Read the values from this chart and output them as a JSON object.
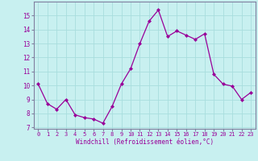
{
  "x": [
    0,
    1,
    2,
    3,
    4,
    5,
    6,
    7,
    8,
    9,
    10,
    11,
    12,
    13,
    14,
    15,
    16,
    17,
    18,
    19,
    20,
    21,
    22,
    23
  ],
  "y": [
    10.1,
    8.7,
    8.3,
    9.0,
    7.9,
    7.7,
    7.6,
    7.3,
    8.5,
    10.1,
    11.2,
    13.0,
    14.6,
    15.4,
    13.5,
    13.9,
    13.6,
    13.3,
    13.7,
    10.8,
    10.1,
    9.95,
    9.0,
    9.5
  ],
  "ylim": [
    6.9,
    16.0
  ],
  "yticks": [
    7,
    8,
    9,
    10,
    11,
    12,
    13,
    14,
    15
  ],
  "xticks": [
    0,
    1,
    2,
    3,
    4,
    5,
    6,
    7,
    8,
    9,
    10,
    11,
    12,
    13,
    14,
    15,
    16,
    17,
    18,
    19,
    20,
    21,
    22,
    23
  ],
  "xlabel": "Windchill (Refroidissement éolien,°C)",
  "line_color": "#990099",
  "marker_color": "#990099",
  "bg_color": "#c8f0f0",
  "grid_color": "#b0dede",
  "text_color": "#990099",
  "spine_color": "#8080a0"
}
